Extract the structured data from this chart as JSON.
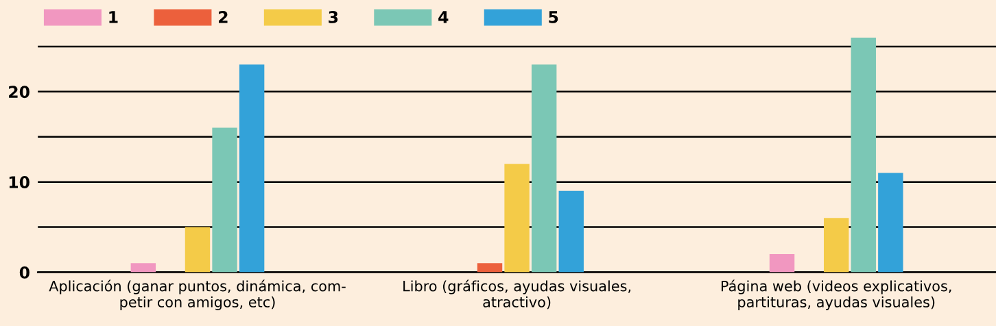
{
  "chart_data": {
    "type": "bar",
    "categories": [
      "Aplicación (ganar puntos, dinámica, com-\npetir con amigos, etc)",
      "Libro (gráficos, ayudas visuales,\natractivo)",
      "Página web (videos explicativos,\npartituras, ayudas visuales)"
    ],
    "series": [
      {
        "name": "1",
        "color": "#f197c0",
        "values": [
          1,
          0,
          2
        ]
      },
      {
        "name": "2",
        "color": "#ec603c",
        "values": [
          0,
          1,
          0
        ]
      },
      {
        "name": "3",
        "color": "#f4cb48",
        "values": [
          5,
          12,
          6
        ]
      },
      {
        "name": "4",
        "color": "#7bc7b5",
        "values": [
          16,
          23,
          26
        ]
      },
      {
        "name": "5",
        "color": "#33a2d9",
        "values": [
          23,
          9,
          11
        ]
      }
    ],
    "ylim": [
      0,
      26
    ],
    "yticks": [
      0,
      {
        "value": 5,
        "label": null
      },
      10,
      {
        "value": 15,
        "label": null
      },
      20,
      {
        "value": 25,
        "label": null
      }
    ],
    "grid": "y",
    "legend": "top left"
  }
}
